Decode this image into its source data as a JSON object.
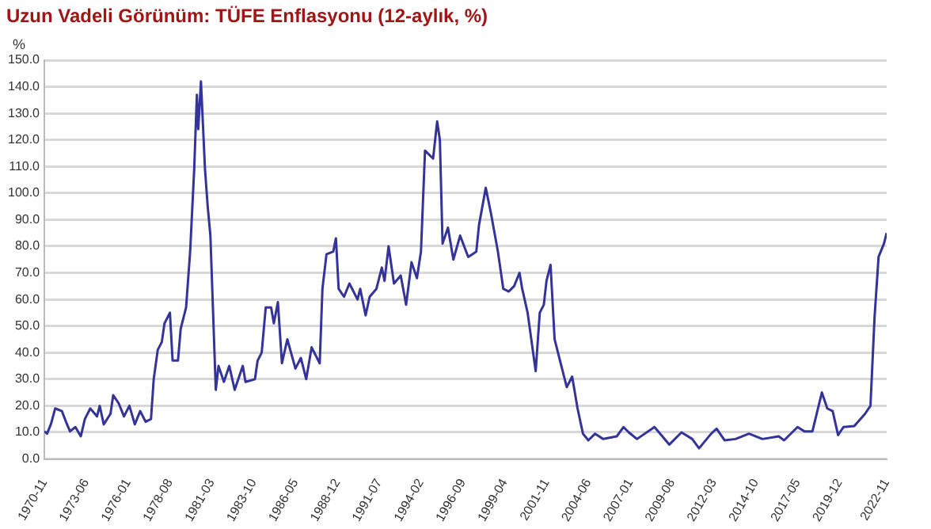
{
  "chart_data": {
    "type": "line",
    "title": "Uzun Vadeli Görünüm: TÜFE Enflasyonu (12-aylık, %)",
    "ylabel": "%",
    "x": [
      "1970-11",
      "1971-01",
      "1971-04",
      "1971-07",
      "1971-12",
      "1972-03",
      "1972-06",
      "1972-10",
      "1973-02",
      "1973-05",
      "1973-09",
      "1974-02",
      "1974-04",
      "1974-07",
      "1974-12",
      "1975-02",
      "1975-06",
      "1975-10",
      "1976-02",
      "1976-06",
      "1976-10",
      "1977-02",
      "1977-06",
      "1977-08",
      "1977-11",
      "1978-02",
      "1978-04",
      "1978-08",
      "1978-10",
      "1979-02",
      "1979-04",
      "1979-08",
      "1979-11",
      "1980-02",
      "1980-04",
      "1980-05",
      "1980-07",
      "1980-10",
      "1980-12",
      "1981-02",
      "1981-06",
      "1981-08",
      "1981-12",
      "1982-04",
      "1982-08",
      "1983-02",
      "1983-04",
      "1983-11",
      "1984-01",
      "1984-04",
      "1984-07",
      "1984-11",
      "1985-01",
      "1985-04",
      "1985-07",
      "1985-11",
      "1986-05",
      "1986-09",
      "1987-01",
      "1987-05",
      "1987-11",
      "1988-01",
      "1988-04",
      "1988-09",
      "1988-11",
      "1989-01",
      "1989-05",
      "1989-09",
      "1990-03",
      "1990-05",
      "1990-09",
      "1990-12",
      "1991-05",
      "1991-09",
      "1991-11",
      "1992-02",
      "1992-06",
      "1992-11",
      "1993-03",
      "1993-07",
      "1993-11",
      "1994-02",
      "1994-05",
      "1994-11",
      "1995-02",
      "1995-04",
      "1995-06",
      "1995-10",
      "1996-02",
      "1996-07",
      "1997-01",
      "1997-07",
      "1997-09",
      "1998-02",
      "1998-06",
      "1998-11",
      "1999-03",
      "1999-07",
      "1999-11",
      "2000-03",
      "2000-05",
      "2000-09",
      "2001-03",
      "2001-06",
      "2001-09",
      "2001-11",
      "2002-02",
      "2002-05",
      "2002-09",
      "2003-02",
      "2003-06",
      "2003-10",
      "2004-02",
      "2004-06",
      "2004-11",
      "2005-05",
      "2006-03",
      "2006-08",
      "2006-12",
      "2007-06",
      "2008-07",
      "2009-06",
      "2010-03",
      "2010-11",
      "2011-04",
      "2012-01",
      "2012-05",
      "2012-11",
      "2013-07",
      "2014-05",
      "2015-03",
      "2016-03",
      "2016-07",
      "2017-05",
      "2017-10",
      "2018-04",
      "2018-11",
      "2019-03",
      "2019-07",
      "2019-11",
      "2020-03",
      "2020-11",
      "2021-07",
      "2021-11",
      "2022-02",
      "2022-05",
      "2022-09",
      "2022-11"
    ],
    "series": [
      {
        "color": "#33339a",
        "values": [
          10.4,
          9.5,
          13.3,
          19,
          18,
          14,
          10.4,
          12,
          8.5,
          15,
          19,
          16,
          20,
          13,
          17,
          24,
          21,
          16,
          20,
          13,
          18,
          14,
          15,
          30,
          41,
          44,
          51,
          55,
          37,
          37,
          49,
          57,
          78,
          109,
          137,
          124,
          142,
          109,
          95,
          84,
          26,
          35,
          29,
          35,
          26,
          35,
          29,
          30,
          37,
          40,
          57,
          57,
          51,
          59,
          36,
          45,
          34,
          38,
          30,
          42,
          36,
          64,
          77,
          78,
          83,
          64,
          61,
          66,
          60,
          64,
          54,
          61,
          64,
          72,
          67,
          80,
          66,
          69,
          58,
          74,
          68,
          78,
          116,
          113,
          127,
          120,
          81,
          87,
          75,
          84,
          76,
          78,
          88,
          102,
          92,
          78,
          64,
          63,
          65,
          70,
          64,
          55,
          33,
          55,
          58,
          67,
          73,
          45,
          37,
          27,
          31,
          19,
          9.5,
          7,
          9.5,
          7.5,
          8.5,
          12,
          10,
          7.5,
          12,
          5.4,
          10,
          7.5,
          4,
          9.5,
          11.4,
          7,
          7.5,
          9.5,
          7.5,
          8.5,
          7,
          12,
          10.4,
          10.4,
          25,
          19,
          18,
          9,
          12,
          12.4,
          17,
          20,
          53,
          76,
          81,
          85
        ]
      }
    ],
    "xlim": [
      "1970-11",
      "2022-11"
    ],
    "xticks": [
      "1970-11",
      "1973-06",
      "1976-01",
      "1978-08",
      "1981-03",
      "1983-10",
      "1986-05",
      "1988-12",
      "1991-07",
      "1994-02",
      "1996-09",
      "1999-04",
      "2001-11",
      "2004-06",
      "2007-01",
      "2009-08",
      "2012-03",
      "2014-10",
      "2017-05",
      "2019-12",
      "2022-11"
    ],
    "ylim": [
      0,
      150
    ],
    "yticks": [
      {
        "value": 0,
        "label": "0.0"
      },
      {
        "value": 10,
        "label": "10.0"
      },
      {
        "value": 20,
        "label": "20.0"
      },
      {
        "value": 30,
        "label": "30.0"
      },
      {
        "value": 40,
        "label": "40.0"
      },
      {
        "value": 50,
        "label": "50.0"
      },
      {
        "value": 60,
        "label": "60.0"
      },
      {
        "value": 70,
        "label": "70.0"
      },
      {
        "value": 80,
        "label": "80.0"
      },
      {
        "value": 90,
        "label": "90.0"
      },
      {
        "value": 100,
        "label": "100.0"
      },
      {
        "value": 110,
        "label": "110.0"
      },
      {
        "value": 120,
        "label": "120.0"
      },
      {
        "value": 130,
        "label": "130.0"
      },
      {
        "value": 140,
        "label": "140.0"
      },
      {
        "value": 150,
        "label": "150.0"
      }
    ],
    "grid": "y",
    "marker": "none",
    "line_style": "solid",
    "legend": false
  }
}
